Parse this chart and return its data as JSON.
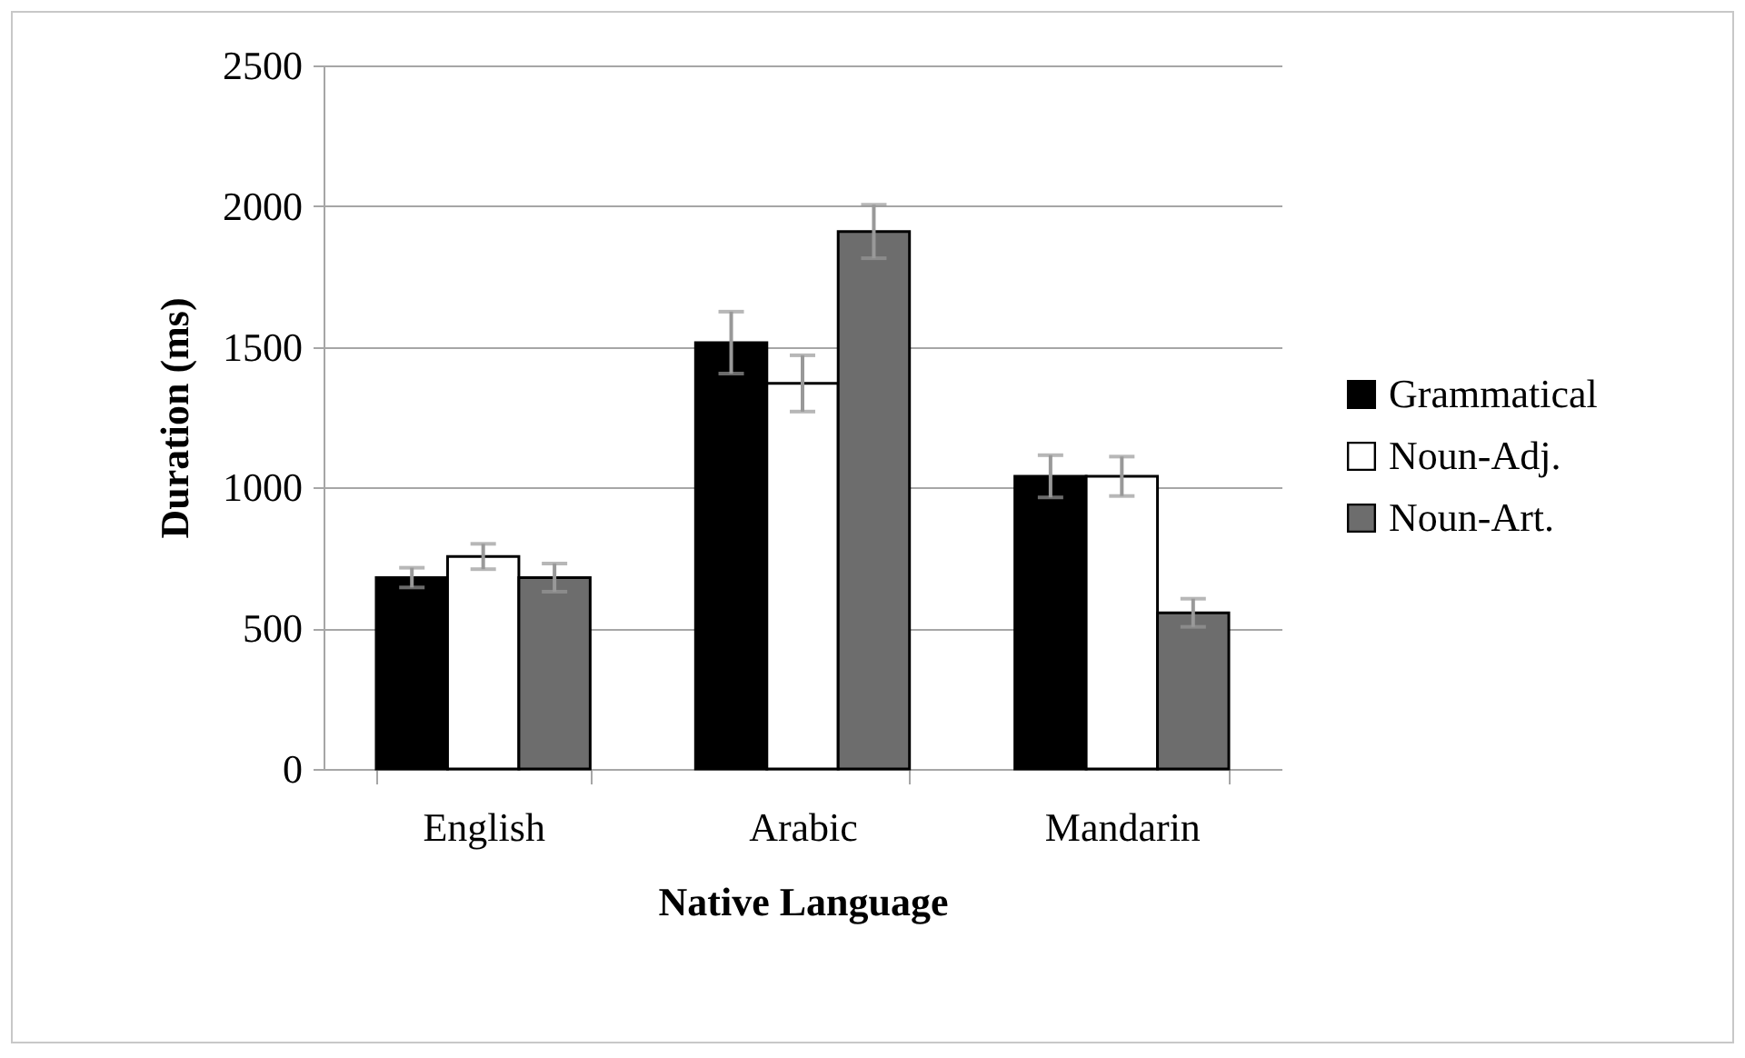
{
  "chart_data": {
    "type": "bar",
    "xlabel": "Native Language",
    "ylabel": "Duration (ms)",
    "categories": [
      "English",
      "Arabic",
      "Mandarin"
    ],
    "series": [
      {
        "name": "Grammatical",
        "color": "#000000",
        "values": [
          680,
          1515,
          1040
        ],
        "errors": [
          35,
          110,
          75
        ]
      },
      {
        "name": "Noun-Adj.",
        "color": "#ffffff",
        "values": [
          755,
          1370,
          1040
        ],
        "errors": [
          45,
          100,
          70
        ]
      },
      {
        "name": "Noun-Art.",
        "color": "#6d6d6d",
        "values": [
          680,
          1910,
          555
        ],
        "errors": [
          50,
          95,
          50
        ]
      }
    ],
    "ylim": [
      0,
      2500
    ],
    "yticks": [
      0,
      500,
      1000,
      1500,
      2000,
      2500
    ],
    "grid": "y",
    "legend": "right"
  }
}
